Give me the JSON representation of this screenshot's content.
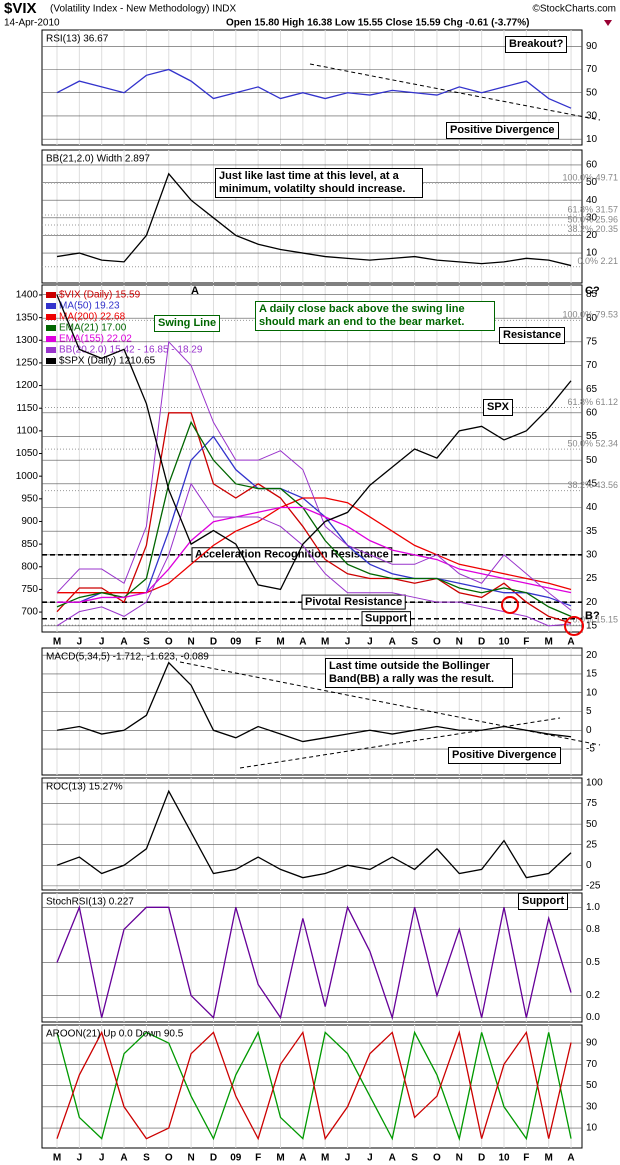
{
  "header": {
    "symbol": "$VIX",
    "description": "(Volatility Index - New Methodology) INDX",
    "date": "14-Apr-2010",
    "quote": "Open 15.80 High 16.38 Low 15.55 Close 15.59 Chg -0.61 (-3.77%)",
    "source": "©StockCharts.com"
  },
  "chart_data": [
    {
      "type": "line",
      "label": "RSI(13) 36.67",
      "ylim": [
        5,
        104
      ],
      "yticks": [
        90,
        70,
        50,
        30,
        10
      ],
      "series": [
        {
          "color": "#3333cc",
          "values": [
            50,
            60,
            55,
            50,
            65,
            70,
            60,
            45,
            50,
            55,
            45,
            50,
            45,
            50,
            48,
            52,
            50,
            48,
            55,
            50,
            55,
            60,
            45,
            36.67
          ]
        }
      ],
      "annotations": [
        "Breakout?",
        "Positive Divergence"
      ]
    },
    {
      "type": "line",
      "label": "BB(21,2.0) Width 2.897",
      "ylim": [
        -7,
        68.5
      ],
      "yticks": [
        60,
        50,
        40,
        30,
        20,
        10
      ],
      "series": [
        {
          "color": "#000000",
          "values": [
            8,
            10,
            6,
            5,
            20,
            55,
            40,
            30,
            20,
            15,
            12,
            10,
            8,
            7,
            6,
            7,
            8,
            6,
            5,
            4,
            5,
            7,
            6,
            2.897
          ]
        }
      ],
      "fib": [
        {
          "value": 49.71,
          "label": "100.0% 49.71"
        },
        {
          "value": 31.57,
          "label": "61.8% 31.57"
        },
        {
          "value": 25.96,
          "label": "50.0% 25.96"
        },
        {
          "value": 20.35,
          "label": "38.2% 20.35"
        },
        {
          "value": 2.21,
          "label": "0.0% 2.21"
        }
      ],
      "annotations": [
        "Just like last time at this level, at a minimum, volatilty should increase."
      ]
    },
    {
      "type": "line",
      "categories": [
        "M",
        "J",
        "J",
        "A",
        "S",
        "O",
        "N",
        "D",
        "09",
        "F",
        "M",
        "A",
        "M",
        "J",
        "J",
        "A",
        "S",
        "O",
        "N",
        "D",
        "10",
        "F",
        "M",
        "A"
      ],
      "ylim": [
        656,
        1422
      ],
      "yticks": [
        700,
        750,
        800,
        850,
        900,
        950,
        1000,
        1050,
        1100,
        1150,
        1200,
        1250,
        1300,
        1350,
        1400
      ],
      "y2lim": [
        13.7,
        87
      ],
      "y2ticks": [
        15,
        20,
        25,
        30,
        35,
        40,
        45,
        50,
        55,
        60,
        65,
        70,
        75,
        80,
        85
      ],
      "series": [
        {
          "name": "$VIX (Daily) 15.59",
          "color": "#cc0000",
          "axis": "y2",
          "values": [
            18,
            23,
            23,
            20,
            32,
            60,
            60,
            45,
            42,
            45,
            42,
            36,
            29,
            26,
            25,
            25,
            24,
            25,
            22,
            21,
            24,
            20,
            17,
            15.59
          ]
        },
        {
          "name": "MA(50) 19.23",
          "color": "#3333cc",
          "axis": "y2",
          "values": [
            20,
            20,
            22,
            22,
            22,
            35,
            50,
            55,
            48,
            44,
            44,
            42,
            38,
            32,
            28,
            26,
            25,
            25,
            24,
            23,
            22,
            22,
            21,
            19.23
          ]
        },
        {
          "name": "MA(200) 22.68",
          "color": "#ee0000",
          "axis": "y2",
          "values": [
            22,
            22,
            22,
            22,
            22,
            24,
            28,
            32,
            35,
            37,
            40,
            42,
            42,
            41,
            38,
            35,
            32,
            30,
            28,
            27,
            26,
            25,
            24,
            22.68
          ]
        },
        {
          "name": "EMA(21) 17.00",
          "color": "#006600",
          "axis": "y2",
          "values": [
            19,
            21,
            22,
            21,
            25,
            45,
            58,
            50,
            45,
            44,
            44,
            40,
            33,
            28,
            26,
            25,
            25,
            25,
            23,
            22,
            23,
            22,
            19,
            17
          ]
        },
        {
          "name": "EMA(155) 22.02",
          "color": "#dd00dd",
          "axis": "y2",
          "values": [
            20,
            20,
            21,
            21,
            22,
            27,
            33,
            37,
            38,
            39,
            40,
            40,
            38,
            36,
            33,
            31,
            30,
            29,
            27,
            26,
            25,
            24,
            23,
            22.02
          ]
        },
        {
          "name": "BB(20,2.0) 15.42 - 16.85 - 18.29",
          "color": "#9933cc",
          "axis": "y2",
          "upper": [
            22,
            27,
            27,
            24,
            36,
            75,
            70,
            58,
            50,
            50,
            52,
            48,
            36,
            32,
            30,
            28,
            28,
            30,
            26,
            24,
            30,
            26,
            22,
            18.29
          ],
          "lower": [
            15,
            18,
            19,
            17,
            20,
            30,
            45,
            38,
            38,
            38,
            36,
            32,
            26,
            22,
            22,
            22,
            21,
            20,
            20,
            19,
            18,
            17,
            15,
            15.42
          ]
        },
        {
          "name": "$SPX (Daily) 1210.65",
          "color": "#000000",
          "values": [
            1400,
            1280,
            1260,
            1280,
            1160,
            970,
            850,
            880,
            850,
            760,
            750,
            850,
            900,
            920,
            980,
            1020,
            1060,
            1040,
            1100,
            1110,
            1080,
            1100,
            1150,
            1210.65
          ]
        }
      ],
      "levels": [
        {
          "value": 30,
          "label": "Acceleration Recognition Resistance"
        },
        {
          "value": 20,
          "label": "Pivotal Resistance"
        },
        {
          "value": 16.5,
          "label": "Support"
        }
      ],
      "fib": [
        {
          "value": 79.53,
          "label": "100.0% 79.53"
        },
        {
          "value": 61.12,
          "label": "61.8% 61.12"
        },
        {
          "value": 52.34,
          "label": "50.0% 52.34"
        },
        {
          "value": 43.56,
          "label": "38.2% 43.56"
        },
        {
          "value": 15.15,
          "label": "0.0% 15.15"
        }
      ],
      "annotations": [
        "A",
        "Swing Line",
        "A daily close back above the swing line should mark an end to the bear market.",
        "Resistance",
        "SPX",
        "C?",
        "B?",
        "Last time outside the Bollinger Band(BB) a rally was the result."
      ]
    },
    {
      "type": "line",
      "label": "MACD(5,34,5) -1.712, -1.623, -0.089",
      "ylim": [
        -11.9,
        21.9
      ],
      "yticks": [
        20,
        15,
        10,
        5,
        0,
        -5
      ],
      "series": [
        {
          "color": "#000000",
          "values": [
            0,
            1,
            -1,
            0,
            4,
            18,
            12,
            0,
            -2,
            1,
            -1,
            -3,
            -2,
            -1,
            0,
            -1,
            0,
            1,
            0,
            0,
            1,
            0,
            -1,
            -1.712
          ]
        }
      ],
      "annotations": [
        "Positive Divergence"
      ]
    },
    {
      "type": "line",
      "label": "ROC(13) 15.27%",
      "ylim": [
        -30,
        106
      ],
      "yticks": [
        100,
        75,
        50,
        25,
        0,
        -25
      ],
      "series": [
        {
          "color": "#000000",
          "values": [
            0,
            10,
            -10,
            0,
            20,
            90,
            40,
            -10,
            -5,
            10,
            -5,
            -15,
            -10,
            0,
            -5,
            10,
            -5,
            20,
            -10,
            -5,
            30,
            -15,
            -10,
            15.27
          ]
        }
      ],
      "annotations": [
        "Support"
      ]
    },
    {
      "type": "line",
      "label": "StochRSI(13) 0.227",
      "ylim": [
        -0.04,
        1.13
      ],
      "yticks": [
        {
          "value": 1,
          "label": "1.0"
        },
        0.8,
        0.5,
        0.2,
        {
          "value": 0,
          "label": "0.0"
        }
      ],
      "series": [
        {
          "color": "#660099",
          "values": [
            0.5,
            1,
            0,
            0.8,
            1,
            1,
            0.2,
            0,
            1,
            0.3,
            0,
            0.9,
            0.1,
            1,
            0.6,
            0,
            1,
            0.2,
            0.8,
            0,
            1,
            0,
            0.9,
            0.227
          ]
        }
      ]
    },
    {
      "type": "line",
      "label": "AROON(21) Up 0.0 Down 90.5",
      "categories": [
        "M",
        "J",
        "J",
        "A",
        "S",
        "O",
        "N",
        "D",
        "09",
        "F",
        "M",
        "A",
        "M",
        "J",
        "J",
        "A",
        "S",
        "O",
        "N",
        "D",
        "10",
        "F",
        "M",
        "A"
      ],
      "ylim": [
        -8.8,
        107
      ],
      "yticks": [
        90,
        70,
        50,
        30,
        10
      ],
      "series": [
        {
          "color": "#009900",
          "values": [
            100,
            20,
            0,
            80,
            100,
            90,
            40,
            0,
            60,
            100,
            20,
            0,
            100,
            80,
            40,
            0,
            100,
            60,
            0,
            100,
            30,
            0,
            100,
            0
          ]
        },
        {
          "color": "#cc0000",
          "values": [
            0,
            60,
            100,
            30,
            0,
            10,
            80,
            100,
            40,
            0,
            70,
            100,
            0,
            30,
            80,
            100,
            20,
            40,
            100,
            0,
            70,
            100,
            0,
            90.5
          ]
        }
      ]
    }
  ]
}
